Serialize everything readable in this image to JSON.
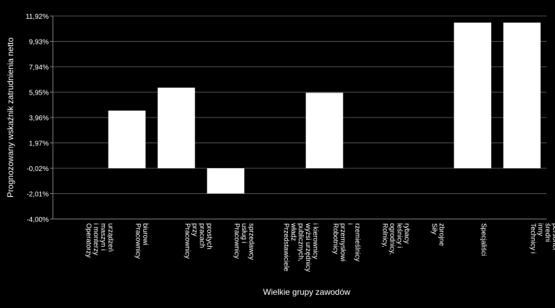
{
  "chart_data": {
    "type": "bar",
    "title": "",
    "xlabel": "Wielkie grupy zawodów",
    "ylabel": "Prognozowany wskaźnik zatrudnienia netto",
    "ylim": [
      -4.0,
      11.92
    ],
    "grid": true,
    "legend": "none",
    "y_ticks": [
      -4.0,
      -2.01,
      -0.02,
      1.97,
      3.96,
      5.95,
      7.94,
      9.93,
      11.92
    ],
    "y_tick_labels": [
      "-4,00%",
      "-2,01%",
      "-0,02%",
      "1,97%",
      "3,96%",
      "5,95%",
      "7,94%",
      "9,93%",
      "11,92%"
    ],
    "categories": [
      "Operatorzy i monterzy maszyn i urządzeń",
      "Pracownicy biurowi",
      "Pracownicy przy pracach prostych",
      "Pracownicy usług i sprzedawcy",
      "Przedstawiciele władz publicznych, wyżsi urzędnicy i kierownicy",
      "Robotnicy przemysłowi i rzemieślnicy",
      "Rolnicy, ogrodnicy, leśnicy i rybacy",
      "Siły zbrojne",
      "Specjaliści",
      "Technicy i inny średni personel"
    ],
    "category_lines": [
      [
        "Operatorzy",
        "i monterzy",
        "maszyn i",
        "urządzeń"
      ],
      [
        "Pracownicy",
        "biurowi"
      ],
      [
        "Pracownicy",
        "przy",
        "pracach",
        "prostych"
      ],
      [
        "Pracownicy",
        "usług i",
        "sprzedawcy"
      ],
      [
        "Przedstawiciele",
        "władz",
        "publicznych,",
        "wyżsi urzędnicy",
        "i kierownicy"
      ],
      [
        "Robotnicy",
        "przemysłowi",
        "i",
        "rzemieślnicy"
      ],
      [
        "Rolnicy,",
        "ogrodnicy,",
        "leśnicy i",
        "rybacy"
      ],
      [
        "Siły",
        "zbrojne"
      ],
      [
        "Specjaliści"
      ],
      [
        "Technicy i",
        "inny",
        "średni",
        "personel"
      ]
    ],
    "values": [
      0.0,
      4.5,
      6.3,
      -2.0,
      0.0,
      5.9,
      0.0,
      0.0,
      11.4,
      11.4
    ],
    "colors": {
      "background": "#000000",
      "bar": "#ffffff",
      "grid": "#555555",
      "axis": "#888888",
      "text": "#ffffff"
    }
  }
}
